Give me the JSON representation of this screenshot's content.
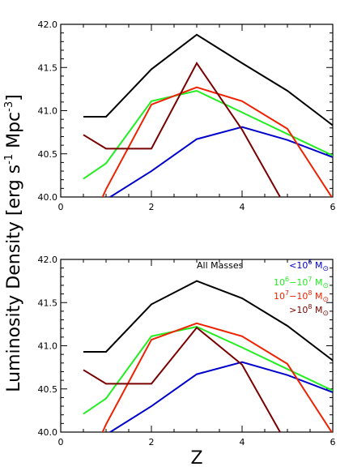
{
  "figure": {
    "ylabel_main": "Luminosity Density",
    "ylabel_units": "[erg s",
    "ylabel_units_exp1": "-1",
    "ylabel_units_mid": " Mpc",
    "ylabel_units_exp2": "-3",
    "ylabel_units_end": "]",
    "xlabel": "Z"
  },
  "colors": {
    "all": "#000000",
    "lt6": "#0000cc",
    "m6to7": "#22ee22",
    "m7to8": "#ee2200",
    "gt8": "#7a0000"
  },
  "legend": {
    "all": "All Masses",
    "lt6_pre": "<10",
    "lt6_exp": "6",
    "m6to7_a": "10",
    "m6to7_a_exp": "6",
    "m6to7_dash": "−10",
    "m6to7_b_exp": "7",
    "m7to8_a": "10",
    "m7to8_a_exp": "7",
    "m7to8_dash": "−10",
    "m7to8_b_exp": "8",
    "gt8_pre": ">10",
    "gt8_exp": "8",
    "msun": "M"
  },
  "chart_data": [
    {
      "type": "line",
      "panel": "top",
      "xlim": [
        0,
        6
      ],
      "ylim": [
        40.0,
        42.0
      ],
      "xticks": [
        "0",
        "2",
        "4",
        "6"
      ],
      "yticks": [
        "40.0",
        "40.5",
        "41.0",
        "41.5",
        "42.0"
      ],
      "series": [
        {
          "key": "all",
          "x": [
            0.5,
            1.0,
            2.0,
            3.0,
            4.0,
            5.0,
            6.0
          ],
          "y": [
            40.93,
            40.93,
            41.48,
            41.88,
            41.55,
            41.23,
            40.83
          ]
        },
        {
          "key": "lt6",
          "x": [
            0.5,
            1.0,
            2.0,
            3.0,
            4.0,
            5.0,
            6.0
          ],
          "y": [
            39.85,
            39.97,
            40.3,
            40.67,
            40.81,
            40.66,
            40.46
          ]
        },
        {
          "key": "m6to7",
          "x": [
            0.5,
            1.0,
            2.0,
            3.0,
            4.0,
            5.0,
            6.0
          ],
          "y": [
            40.21,
            40.39,
            41.11,
            41.23,
            40.98,
            40.73,
            40.48
          ]
        },
        {
          "key": "m7to8",
          "x": [
            0.5,
            1.0,
            2.0,
            3.0,
            4.0,
            5.0,
            6.0
          ],
          "y": [
            39.5,
            40.09,
            41.07,
            41.27,
            41.11,
            40.79,
            39.98
          ]
        },
        {
          "key": "gt8",
          "x": [
            0.5,
            1.0,
            2.0,
            3.0,
            4.0,
            5.0
          ],
          "y": [
            40.72,
            40.56,
            40.56,
            41.55,
            40.78,
            39.85
          ]
        }
      ]
    },
    {
      "type": "line",
      "panel": "bottom",
      "xlim": [
        0,
        6
      ],
      "ylim": [
        40.0,
        42.0
      ],
      "xticks": [
        "0",
        "2",
        "4",
        "6"
      ],
      "yticks": [
        "40.0",
        "40.5",
        "41.0",
        "41.5",
        "42.0"
      ],
      "series": [
        {
          "key": "all",
          "x": [
            0.5,
            1.0,
            2.0,
            3.0,
            4.0,
            5.0,
            6.0
          ],
          "y": [
            40.93,
            40.93,
            41.48,
            41.75,
            41.55,
            41.23,
            40.83
          ]
        },
        {
          "key": "lt6",
          "x": [
            0.5,
            1.0,
            2.0,
            3.0,
            4.0,
            5.0,
            6.0
          ],
          "y": [
            39.85,
            39.97,
            40.3,
            40.67,
            40.81,
            40.66,
            40.46
          ]
        },
        {
          "key": "m6to7",
          "x": [
            0.5,
            1.0,
            2.0,
            3.0,
            4.0,
            5.0,
            6.0
          ],
          "y": [
            40.21,
            40.39,
            41.11,
            41.22,
            40.98,
            40.73,
            40.48
          ]
        },
        {
          "key": "m7to8",
          "x": [
            0.5,
            1.0,
            2.0,
            3.0,
            4.0,
            5.0,
            6.0
          ],
          "y": [
            39.5,
            40.09,
            41.07,
            41.26,
            41.11,
            40.79,
            39.98
          ]
        },
        {
          "key": "gt8",
          "x": [
            0.5,
            1.0,
            2.0,
            3.0,
            4.0,
            5.0
          ],
          "y": [
            40.72,
            40.56,
            40.56,
            41.21,
            40.78,
            39.85
          ]
        }
      ]
    }
  ]
}
